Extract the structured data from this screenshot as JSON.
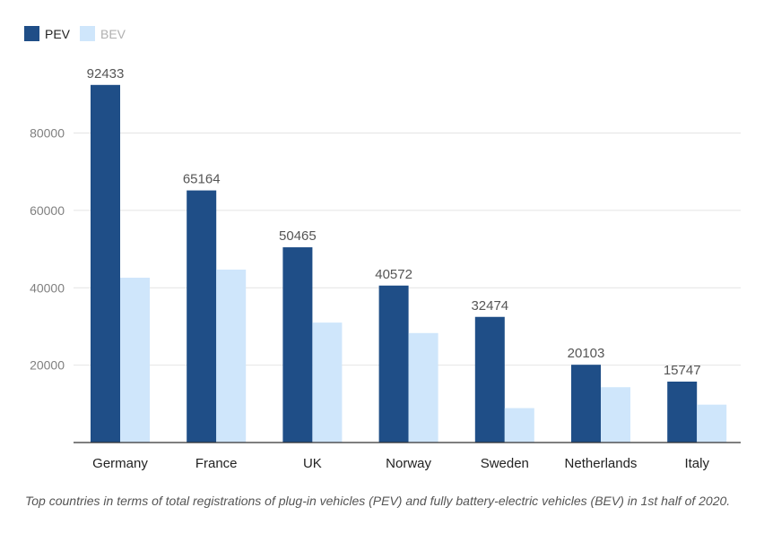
{
  "chart_data": {
    "type": "bar",
    "categories": [
      "Germany",
      "France",
      "UK",
      "Norway",
      "Sweden",
      "Netherlands",
      "Italy"
    ],
    "series": [
      {
        "name": "PEV",
        "color": "#1f4e87",
        "values": [
          92433,
          65164,
          50465,
          40572,
          32474,
          20103,
          15747
        ],
        "show_labels": true
      },
      {
        "name": "BEV",
        "color": "#cfe6fb",
        "values": [
          42600,
          44700,
          31000,
          28300,
          8900,
          14300,
          9800
        ],
        "show_labels": false
      }
    ],
    "yticks": [
      20000,
      40000,
      60000,
      80000
    ],
    "ylim": [
      0,
      100000
    ],
    "grid": true,
    "legend": "top-left",
    "legend_text_colors": [
      "#222222",
      "#b0b0b0"
    ]
  },
  "caption": "Top countries in terms of total registrations of plug-in vehicles (PEV) and fully battery-electric vehicles (BEV) in 1st half of 2020."
}
